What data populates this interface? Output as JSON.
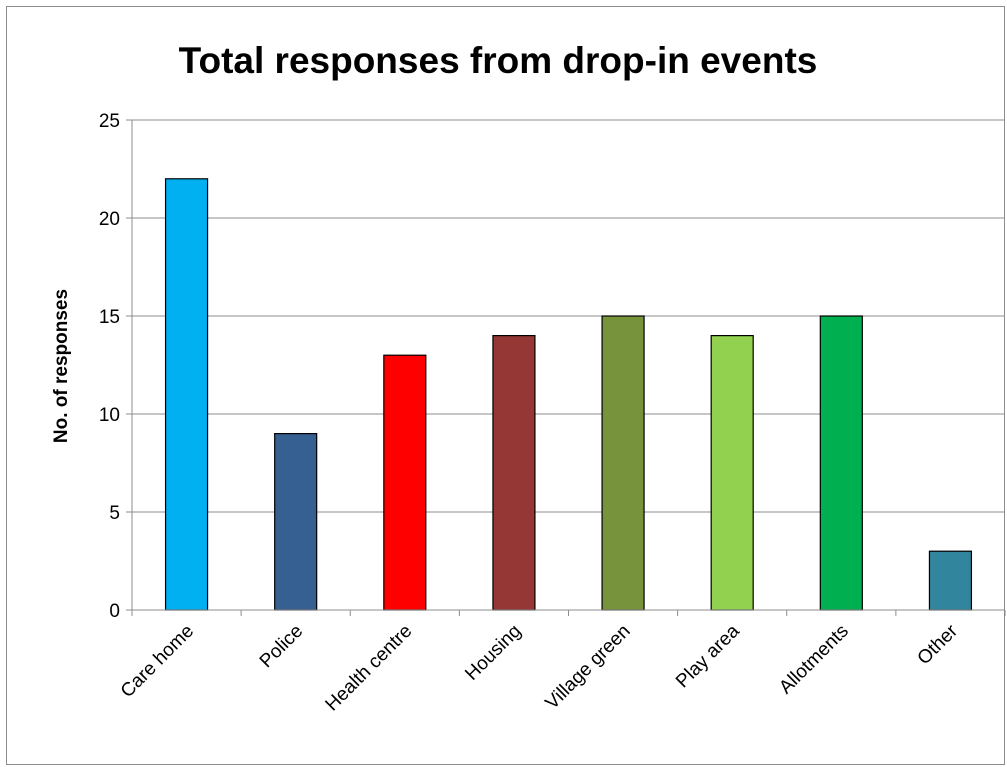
{
  "chart_data": {
    "type": "bar",
    "title": "Total responses from drop-in events",
    "xlabel": "",
    "ylabel": "No. of responses",
    "categories": [
      "Care home",
      "Police",
      "Health centre",
      "Housing",
      "Village green",
      "Play area",
      "Allotments",
      "Other"
    ],
    "values": [
      22,
      9,
      13,
      14,
      15,
      14,
      15,
      3
    ],
    "colors": [
      "#00b0f0",
      "#376092",
      "#ff0000",
      "#953735",
      "#77933c",
      "#92d050",
      "#00b050",
      "#31859c"
    ],
    "ylim": [
      0,
      25
    ],
    "yticks": [
      0,
      5,
      10,
      15,
      20,
      25
    ],
    "grid": true,
    "legend": "none"
  }
}
